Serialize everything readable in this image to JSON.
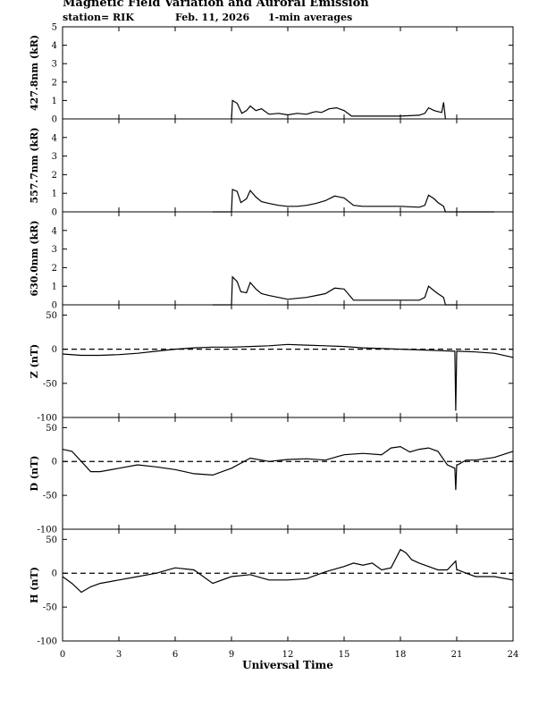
{
  "header": {
    "title": "Magnetic Field Variation and Auroral Emission",
    "station": "station= RIK",
    "date": "Feb. 11, 2026",
    "averaging": "1-min averages"
  },
  "chart_data": [
    {
      "type": "line",
      "ylabel": "427.8nm (kR)",
      "ylim": [
        0,
        5
      ],
      "yticks": [
        "0",
        "1",
        "2",
        "3",
        "4",
        "5"
      ],
      "xlim": [
        0,
        24
      ],
      "x": [
        9.0,
        9.05,
        9.3,
        9.55,
        9.8,
        10.0,
        10.3,
        10.6,
        11.0,
        11.5,
        12.0,
        12.5,
        13.0,
        13.3,
        13.5,
        13.8,
        14.2,
        14.6,
        15.0,
        15.4,
        16.0,
        17.0,
        18.0,
        19.0,
        19.3,
        19.5,
        19.8,
        20.0,
        20.2,
        20.3,
        20.4
      ],
      "values": [
        0.0,
        1.0,
        0.85,
        0.3,
        0.45,
        0.7,
        0.45,
        0.55,
        0.25,
        0.3,
        0.22,
        0.3,
        0.25,
        0.35,
        0.4,
        0.35,
        0.55,
        0.6,
        0.45,
        0.15,
        0.15,
        0.15,
        0.15,
        0.2,
        0.3,
        0.6,
        0.45,
        0.4,
        0.35,
        0.9,
        0.0
      ]
    },
    {
      "type": "line",
      "ylabel": "557.7nm (kR)",
      "ylim": [
        0,
        5
      ],
      "yticks": [
        "0",
        "1",
        "2",
        "3",
        "4"
      ],
      "xlim": [
        0,
        24
      ],
      "x": [
        8.0,
        9.0,
        9.05,
        9.3,
        9.5,
        9.8,
        10.0,
        10.3,
        10.6,
        11.0,
        11.5,
        12.0,
        12.5,
        13.0,
        13.5,
        14.0,
        14.5,
        15.0,
        15.5,
        16.0,
        17.0,
        18.0,
        19.0,
        19.3,
        19.5,
        19.8,
        20.0,
        20.3,
        20.4,
        21.0,
        23.0
      ],
      "values": [
        0.0,
        0.0,
        1.2,
        1.1,
        0.5,
        0.7,
        1.15,
        0.8,
        0.55,
        0.45,
        0.35,
        0.3,
        0.3,
        0.35,
        0.45,
        0.6,
        0.85,
        0.75,
        0.35,
        0.3,
        0.3,
        0.3,
        0.25,
        0.35,
        0.9,
        0.7,
        0.5,
        0.3,
        0.0,
        0.0,
        0.0
      ]
    },
    {
      "type": "line",
      "ylabel": "630.0nm (kR)",
      "ylim": [
        0,
        5
      ],
      "yticks": [
        "0",
        "1",
        "2",
        "3",
        "4"
      ],
      "xlim": [
        0,
        24
      ],
      "x": [
        8.0,
        9.0,
        9.05,
        9.3,
        9.5,
        9.8,
        10.0,
        10.3,
        10.6,
        11.0,
        11.5,
        12.0,
        12.5,
        13.0,
        13.5,
        14.0,
        14.5,
        15.0,
        15.5,
        16.0,
        17.0,
        18.0,
        19.0,
        19.3,
        19.5,
        19.8,
        20.0,
        20.3,
        20.4,
        21.0
      ],
      "values": [
        0.0,
        0.0,
        1.5,
        1.25,
        0.7,
        0.65,
        1.2,
        0.85,
        0.6,
        0.5,
        0.4,
        0.3,
        0.35,
        0.4,
        0.5,
        0.6,
        0.9,
        0.85,
        0.25,
        0.25,
        0.25,
        0.25,
        0.25,
        0.4,
        1.0,
        0.75,
        0.6,
        0.4,
        0.0,
        0.0
      ]
    },
    {
      "type": "line",
      "ylabel": "Z (nT)",
      "ylim": [
        -100,
        65
      ],
      "yticks": [
        "50",
        "0",
        "-50",
        "-100"
      ],
      "xlim": [
        0,
        24
      ],
      "x": [
        0,
        1,
        2,
        3,
        4,
        5,
        6,
        7,
        8,
        9,
        10,
        11,
        12,
        13,
        14,
        15,
        16,
        17,
        18,
        19,
        20,
        20.9,
        20.95,
        21.0,
        21.05,
        22,
        23,
        24
      ],
      "values": [
        -7,
        -9,
        -9,
        -8,
        -6,
        -3,
        0,
        2,
        3,
        3,
        4,
        5,
        7,
        6,
        5,
        4,
        2,
        1,
        0,
        -1,
        -2,
        -3,
        -90,
        -3,
        -3,
        -4,
        -6,
        -12
      ]
    },
    {
      "type": "line",
      "ylabel": "D (nT)",
      "ylim": [
        -100,
        65
      ],
      "yticks": [
        "50",
        "0",
        "-50",
        "-100"
      ],
      "xlim": [
        0,
        24
      ],
      "x": [
        0,
        0.5,
        1,
        1.5,
        2,
        3,
        4,
        5,
        6,
        7,
        8,
        9,
        10,
        11,
        12,
        13,
        14,
        15,
        16,
        17,
        17.5,
        18,
        18.5,
        19,
        19.5,
        20,
        20.5,
        20.9,
        20.95,
        21.0,
        21.05,
        21.5,
        22,
        23,
        24
      ],
      "values": [
        18,
        15,
        0,
        -15,
        -15,
        -10,
        -5,
        -8,
        -12,
        -18,
        -20,
        -10,
        5,
        0,
        3,
        4,
        2,
        10,
        12,
        10,
        20,
        22,
        14,
        18,
        20,
        15,
        -5,
        -10,
        -42,
        -5,
        -5,
        2,
        2,
        6,
        15
      ]
    },
    {
      "type": "line",
      "ylabel": "H (nT)",
      "ylim": [
        -100,
        65
      ],
      "yticks": [
        "50",
        "0",
        "-50",
        "-100"
      ],
      "xlim": [
        0,
        24
      ],
      "x": [
        0,
        0.5,
        1,
        1.5,
        2,
        3,
        4,
        5,
        6,
        7,
        8,
        9,
        10,
        11,
        12,
        13,
        14,
        15,
        15.5,
        16,
        16.5,
        17,
        17.5,
        18,
        18.3,
        18.6,
        19,
        19.5,
        20,
        20.5,
        20.95,
        21.0,
        21.05,
        21.5,
        22,
        23,
        24
      ],
      "values": [
        -5,
        -15,
        -28,
        -20,
        -15,
        -10,
        -5,
        0,
        8,
        5,
        -15,
        -5,
        -2,
        -10,
        -10,
        -8,
        2,
        10,
        15,
        12,
        15,
        5,
        8,
        35,
        30,
        20,
        15,
        10,
        5,
        5,
        18,
        5,
        5,
        0,
        -5,
        -5,
        -10
      ]
    }
  ],
  "xaxis": {
    "ticks": [
      "0",
      "3",
      "6",
      "9",
      "12",
      "15",
      "18",
      "21",
      "24"
    ],
    "label": "Universal Time"
  }
}
